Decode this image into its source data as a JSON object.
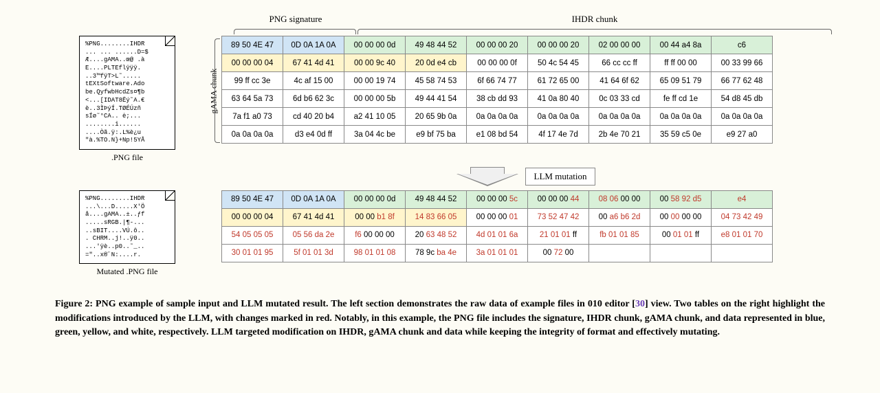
{
  "labels": {
    "png_signature": "PNG signature",
    "ihdr_chunk": "IHDR chunk",
    "gama_chunk": "gAMA chunk",
    "llm_mutation": "LLM mutation",
    "png_file": ".PNG file",
    "mutated_file": "Mutated .PNG file"
  },
  "colors": {
    "blue": "#d0e4f5",
    "green": "#d8f0d8",
    "yellow": "#fff5cc",
    "white": "#ffffff",
    "mutation_red": "#c0392b",
    "border": "#888888",
    "background": "#fdfcf5",
    "ref_purple": "#6a3fb5"
  },
  "file1_text": "%PNG........IHDR\n... ... ......D=$\nÆ....gAMA..œ@ .à\nE....PLTEflÿÿÿ.\n..3™fÿT>L˜.....\ntEXtSoftware.Ado\nbe.QyfwbHcdZs¤¶b\n<...[IDAT8Ëý˜A.€\nè..3ÌÞýÍ.TØÉÚzñ\nsÍø˜°CA.. ė;...\n........î......\n....Òã.ÿ:.L%è¿u\n\"à.%TO.N}+Np!5YÅ",
  "file2_text": "%PNG........IHDR\n...\\...D.....X'Ö\nå....gAMA..±..ƒf\n.....sRGB.|¶-...\n..sBIT....VÚ.ô..\n. CHRM..j!..ÿ0..\n...'ÿè..p0..˜_..\n=\"..x®˝N:....r.",
  "table1": {
    "rows": [
      [
        {
          "t": "89 50 4E 47",
          "c": "blue"
        },
        {
          "t": "0D 0A 1A 0A",
          "c": "blue"
        },
        {
          "t": "00 00 00 0d",
          "c": "green"
        },
        {
          "t": "49 48 44 52",
          "c": "green"
        },
        {
          "t": "00 00 00 20",
          "c": "green"
        },
        {
          "t": "00 00 00 20",
          "c": "green"
        },
        {
          "t": "02 00 00 00",
          "c": "green"
        },
        {
          "t": "00 44 a4 8a",
          "c": "green"
        },
        {
          "t": "c6",
          "c": "green"
        }
      ],
      [
        {
          "t": "00 00 00 04",
          "c": "yellow"
        },
        {
          "t": "67 41 4d 41",
          "c": "yellow"
        },
        {
          "t": "00 00 9c 40",
          "c": "yellow"
        },
        {
          "t": "20 0d e4 cb",
          "c": "yellow"
        },
        {
          "t": "00 00 00 0f",
          "c": ""
        },
        {
          "t": "50 4c 54 45",
          "c": ""
        },
        {
          "t": "66 cc cc ff",
          "c": ""
        },
        {
          "t": "ff ff 00 00",
          "c": ""
        },
        {
          "t": "00 33 99 66",
          "c": ""
        }
      ],
      [
        {
          "t": "99 ff cc 3e",
          "c": ""
        },
        {
          "t": "4c af 15 00",
          "c": ""
        },
        {
          "t": "00 00 19 74",
          "c": ""
        },
        {
          "t": "45 58 74 53",
          "c": ""
        },
        {
          "t": "6f 66 74 77",
          "c": ""
        },
        {
          "t": "61 72 65 00",
          "c": ""
        },
        {
          "t": "41 64 6f 62",
          "c": ""
        },
        {
          "t": "65 09 51 79",
          "c": ""
        },
        {
          "t": "66 77 62 48",
          "c": ""
        }
      ],
      [
        {
          "t": "63 64 5a 73",
          "c": ""
        },
        {
          "t": "6d b6 62 3c",
          "c": ""
        },
        {
          "t": "00 00 00 5b",
          "c": ""
        },
        {
          "t": "49 44 41 54",
          "c": ""
        },
        {
          "t": "38 cb dd 93",
          "c": ""
        },
        {
          "t": "41 0a 80 40",
          "c": ""
        },
        {
          "t": "0c 03 33 cd",
          "c": ""
        },
        {
          "t": "fe ff cd 1e",
          "c": ""
        },
        {
          "t": "54 d8 45 db",
          "c": ""
        }
      ],
      [
        {
          "t": "7a f1 a0 73",
          "c": ""
        },
        {
          "t": "cd 40 20 b4",
          "c": ""
        },
        {
          "t": "a2 41 10 05",
          "c": ""
        },
        {
          "t": "20 65 9b 0a",
          "c": ""
        },
        {
          "t": "0a 0a 0a 0a",
          "c": ""
        },
        {
          "t": "0a 0a 0a 0a",
          "c": ""
        },
        {
          "t": "0a 0a 0a 0a",
          "c": ""
        },
        {
          "t": "0a 0a 0a 0a",
          "c": ""
        },
        {
          "t": "0a 0a 0a 0a",
          "c": ""
        }
      ],
      [
        {
          "t": "0a 0a 0a 0a",
          "c": ""
        },
        {
          "t": "d3 e4 0d ff",
          "c": ""
        },
        {
          "t": "3a 04 4c be",
          "c": ""
        },
        {
          "t": "e9 bf 75 ba",
          "c": ""
        },
        {
          "t": "e1 08 bd 54",
          "c": ""
        },
        {
          "t": "4f 17 4e 7d",
          "c": ""
        },
        {
          "t": "2b 4e 70 21",
          "c": ""
        },
        {
          "t": "35 59 c5 0e",
          "c": ""
        },
        {
          "t": "e9 27 a0",
          "c": ""
        }
      ]
    ]
  },
  "table2": {
    "rows": [
      [
        {
          "t": "89 50 4E 47",
          "c": "blue",
          "m": []
        },
        {
          "t": "0D 0A 1A 0A",
          "c": "blue",
          "m": []
        },
        {
          "t": "00 00 00 0d",
          "c": "green",
          "m": []
        },
        {
          "t": "49 48 44 52",
          "c": "green",
          "m": []
        },
        {
          "t": "00 00 00 5c",
          "c": "green",
          "m": [
            3
          ]
        },
        {
          "t": "00 00 00 44",
          "c": "green",
          "m": [
            3
          ]
        },
        {
          "t": "08 06 00 00",
          "c": "green",
          "m": [
            0,
            1
          ]
        },
        {
          "t": "00 58 92 d5",
          "c": "green",
          "m": [
            1,
            2,
            3
          ]
        },
        {
          "t": "e4",
          "c": "green",
          "m": [
            0
          ]
        }
      ],
      [
        {
          "t": "00 00 00 04",
          "c": "yellow",
          "m": []
        },
        {
          "t": "67 41 4d 41",
          "c": "yellow",
          "m": []
        },
        {
          "t": "00 00 b1 8f",
          "c": "yellow",
          "m": [
            2,
            3
          ]
        },
        {
          "t": "14 83 66 05",
          "c": "yellow",
          "m": [
            0,
            1,
            2,
            3
          ]
        },
        {
          "t": "00 00 00 01",
          "c": "",
          "m": [
            3
          ]
        },
        {
          "t": "73 52 47 42",
          "c": "",
          "m": [
            0,
            1,
            2,
            3
          ]
        },
        {
          "t": "00 a6 b6 2d",
          "c": "",
          "m": [
            1,
            2,
            3
          ]
        },
        {
          "t": "00 00 00 00",
          "c": "",
          "m": [
            1
          ]
        },
        {
          "t": "04 73 42 49",
          "c": "",
          "m": [
            0,
            1,
            2,
            3
          ]
        }
      ],
      [
        {
          "t": "54 05 05 05",
          "c": "",
          "m": [
            0,
            1,
            2,
            3
          ]
        },
        {
          "t": "05 56 da 2e",
          "c": "",
          "m": [
            0,
            1,
            2,
            3
          ]
        },
        {
          "t": "f6 00 00 00",
          "c": "",
          "m": [
            0
          ]
        },
        {
          "t": "20 63 48 52",
          "c": "",
          "m": [
            1,
            2,
            3
          ]
        },
        {
          "t": "4d 01 01 6a",
          "c": "",
          "m": [
            0,
            1,
            2,
            3
          ]
        },
        {
          "t": "21 01 01 ff",
          "c": "",
          "m": [
            0,
            1,
            2
          ]
        },
        {
          "t": "fb 01 01 85",
          "c": "",
          "m": [
            0,
            1,
            2,
            3
          ]
        },
        {
          "t": "00 01 01 ff",
          "c": "",
          "m": [
            1,
            2
          ]
        },
        {
          "t": "e8 01 01 70",
          "c": "",
          "m": [
            0,
            1,
            2,
            3
          ]
        }
      ],
      [
        {
          "t": "30 01 01 95",
          "c": "",
          "m": [
            0,
            1,
            2,
            3
          ]
        },
        {
          "t": "5f 01 01 3d",
          "c": "",
          "m": [
            0,
            1,
            2,
            3
          ]
        },
        {
          "t": "98 01 01 08",
          "c": "",
          "m": [
            0,
            1,
            2,
            3
          ]
        },
        {
          "t": "78 9c ba 4e",
          "c": "",
          "m": [
            2,
            3
          ]
        },
        {
          "t": "3a 01 01 01",
          "c": "",
          "m": [
            0,
            1,
            2,
            3
          ]
        },
        {
          "t": "00 72 00",
          "c": "",
          "m": [
            1
          ]
        },
        {
          "t": "",
          "c": "",
          "m": []
        },
        {
          "t": "",
          "c": "",
          "m": []
        },
        {
          "t": "",
          "c": "",
          "m": []
        }
      ]
    ]
  },
  "caption": {
    "prefix": "Figure 2: PNG example of sample input and LLM mutated result. The left section demonstrates the raw data of example files in 010 editor [",
    "ref": "30",
    "suffix": "] view. Two tables on the right highlight the modifications introduced by the LLM, with changes marked in red. Notably, in this example, the PNG file includes the signature, IHDR chunk, gAMA chunk, and data represented in blue, green, yellow, and white, respectively. LLM targeted modification on IHDR, gAMA chunk and data while keeping the integrity of format and effectively mutating."
  }
}
